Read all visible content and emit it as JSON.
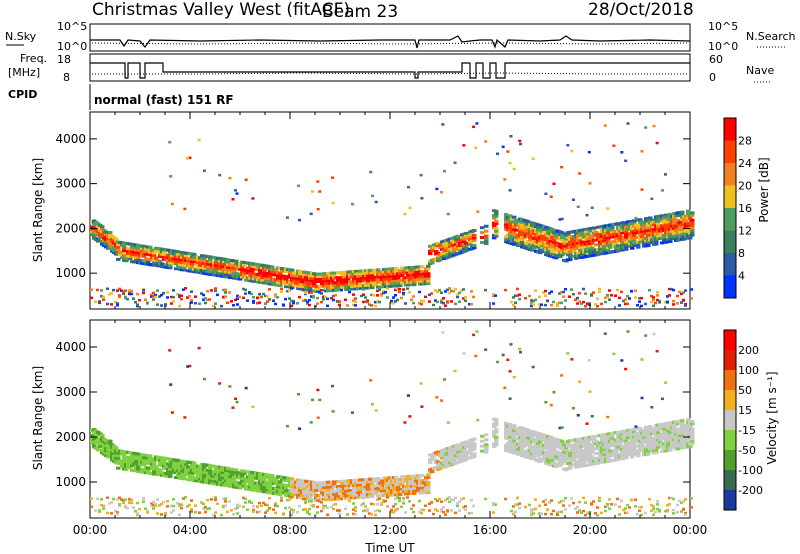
{
  "header": {
    "station": "Christmas Valley West (fitACF)",
    "beam": "Beam 23",
    "date": "28/Oct/2018"
  },
  "top_panels": {
    "nsky_label": "N.Sky",
    "nsky_ticks": [
      "10^5",
      "10^0"
    ],
    "nsearch_label": "N.Search",
    "nsearch_ticks": [
      "10^5",
      "10^0"
    ],
    "freq_label_1": "Freq.",
    "freq_label_2": "[MHz]",
    "freq_ticks": [
      "18",
      "8"
    ],
    "nave_label": "Nave",
    "nave_ticks": [
      "60",
      "0"
    ],
    "cpid_label": "CPID",
    "cpid_text": "normal (fast) 151 RF"
  },
  "chart_data": [
    {
      "type": "heatmap",
      "name": "power",
      "ylabel": "Slant Range [km]",
      "yticks": [
        "4000",
        "3000",
        "2000",
        "1000"
      ],
      "ylim": [
        200,
        4600
      ],
      "colorbar_label": "Power [dB]",
      "colorbar_ticks": [
        "28",
        "24",
        "20",
        "16",
        "12",
        "8",
        "4"
      ],
      "colors": [
        "#0033ff",
        "#2d5aa8",
        "#3a8060",
        "#4fa060",
        "#f0c020",
        "#f08020",
        "#ff4000",
        "#ff0000"
      ]
    },
    {
      "type": "heatmap",
      "name": "velocity",
      "xlabel": "Time UT",
      "xticks": [
        "00:00",
        "04:00",
        "08:00",
        "12:00",
        "16:00",
        "20:00",
        "00:00"
      ],
      "ylabel": "Slant Range [km]",
      "yticks": [
        "4000",
        "3000",
        "2000",
        "1000"
      ],
      "ylim": [
        200,
        4600
      ],
      "colorbar_label": "Velocity [m s⁻¹]",
      "colorbar_ticks": [
        "200",
        "100",
        "50",
        "15",
        "-15",
        "-50",
        "-100",
        "-200"
      ],
      "colors": [
        "#1a3aa0",
        "#3a6a50",
        "#50a030",
        "#80d040",
        "#c8c8c8",
        "#f0b020",
        "#f07010",
        "#e02000",
        "#ff0000"
      ]
    }
  ]
}
